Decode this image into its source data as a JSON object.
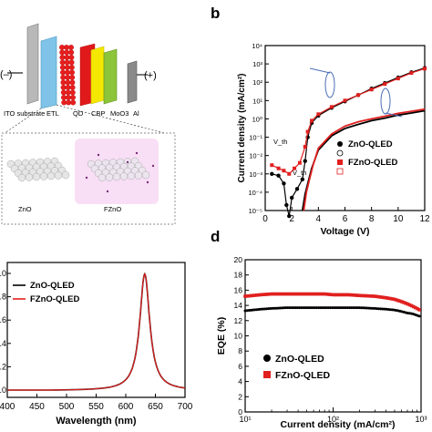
{
  "panel_a": {
    "labels": {
      "minus": "(–)",
      "plus": "(+)",
      "ito": "ITO substrate",
      "etl": "ETL",
      "qd": "QD",
      "cbp": "CBP",
      "moo3": "MoO3",
      "al": "Al",
      "zno": "ZnO",
      "fzno": "FZnO"
    },
    "colors": {
      "etl": "#7fc4e8",
      "qd": "#e81f1f",
      "cbp": "#f5e800",
      "moo3": "#8cc43a",
      "al": "#8a8a8a",
      "fzno_glow": "#f2c4ee"
    }
  },
  "panel_b": {
    "letter": "b"
  },
  "panel_c": {
    "letter": ""
  },
  "panel_d": {
    "letter": "d"
  },
  "chart_data": [
    {
      "id": "b",
      "type": "line",
      "title": "",
      "xlabel": "Voltage (V)",
      "ylabel": "Current density (mA/cm²)",
      "xlim": [
        0,
        12
      ],
      "ylim_log10": [
        -5,
        4
      ],
      "yscale": "log",
      "xticks": [
        "0",
        "2",
        "4",
        "6",
        "8",
        "10",
        "12"
      ],
      "yticks": [
        "10⁴",
        "10³",
        "10²",
        "10¹",
        "10⁰",
        "10⁻¹",
        "10⁻²",
        "10⁻³",
        "10⁻⁴",
        "10⁻⁵"
      ],
      "annotations": [
        "V_th",
        "V_th"
      ],
      "legend_position": "right",
      "series": [
        {
          "name": "ZnO-QLED",
          "kind": "current",
          "color": "#000000",
          "x": [
            0.5,
            1.0,
            1.4,
            1.6,
            1.8,
            2.0,
            2.4,
            2.8,
            3.0,
            3.2,
            3.5,
            4,
            5,
            6,
            7,
            8,
            9,
            10,
            11,
            12
          ],
          "y": [
            0.001,
            0.0008,
            0.0003,
            2e-05,
            5e-06,
            5e-05,
            0.00015,
            0.0005,
            0.005,
            0.1,
            0.6,
            1.5,
            4,
            9,
            20,
            45,
            90,
            180,
            350,
            600
          ]
        },
        {
          "name": "ZnO-QLED",
          "kind": "luminance",
          "color": "#000000",
          "x": [
            2.8,
            3.0,
            3.2,
            3.5,
            4,
            5,
            6,
            7,
            8,
            9,
            10,
            11,
            12
          ],
          "y": [
            1e-05,
            8e-05,
            0.0003,
            0.002,
            0.02,
            0.12,
            0.3,
            0.5,
            0.8,
            1.1,
            1.6,
            2.1,
            2.8
          ]
        },
        {
          "name": "FZnO-QLED",
          "kind": "current",
          "color": "#e0201f",
          "x": [
            0.5,
            1.0,
            1.4,
            1.8,
            2.2,
            2.6,
            3.0,
            3.2,
            3.5,
            4,
            5,
            6,
            7,
            8,
            9,
            10,
            11,
            12
          ],
          "y": [
            0.003,
            0.002,
            0.0015,
            0.001,
            0.002,
            0.004,
            0.03,
            0.2,
            0.8,
            1.8,
            4.5,
            10,
            20,
            40,
            80,
            160,
            320,
            550
          ]
        },
        {
          "name": "FZnO-QLED",
          "kind": "luminance",
          "color": "#e0201f",
          "x": [
            2.9,
            3.1,
            3.3,
            3.6,
            4,
            5,
            6,
            7,
            8,
            9,
            10,
            11,
            12
          ],
          "y": [
            1e-05,
            0.0001,
            0.0004,
            0.003,
            0.025,
            0.15,
            0.4,
            0.7,
            1.0,
            1.4,
            2.0,
            2.6,
            3.4
          ]
        }
      ]
    },
    {
      "id": "c",
      "type": "line",
      "title": "",
      "xlabel": "Wavelength (nm)",
      "ylabel": "",
      "xlim": [
        400,
        700
      ],
      "ylim": [
        0,
        1.0
      ],
      "xticks": [
        "400",
        "450",
        "500",
        "550",
        "600",
        "650",
        "700"
      ],
      "yticks": [
        "1.0",
        "0.8",
        "0.6",
        "0.4",
        "0.2",
        "0.0"
      ],
      "legend_position": "top-left",
      "series": [
        {
          "name": "ZnO-QLED",
          "color": "#000000",
          "peak_nm": 632,
          "fwhm_nm": 22
        },
        {
          "name": "FZnO-QLED",
          "color": "#e0201f",
          "peak_nm": 632,
          "fwhm_nm": 22
        }
      ]
    },
    {
      "id": "d",
      "type": "scatter",
      "title": "",
      "xlabel": "Current density (mA/cm²)",
      "ylabel": "EQE (%)",
      "xscale": "log",
      "xlim_log10": [
        1,
        3
      ],
      "ylim": [
        0,
        20
      ],
      "xticks": [
        "10¹",
        "10²",
        "10³"
      ],
      "yticks": [
        "20",
        "18",
        "16",
        "14",
        "12",
        "10",
        "8",
        "6",
        "4",
        "2",
        "0"
      ],
      "legend_position": "bottom-left",
      "series": [
        {
          "name": "ZnO-QLED",
          "color": "#000000",
          "marker": "circle",
          "x": [
            10,
            15,
            20,
            30,
            50,
            80,
            100,
            150,
            200,
            300,
            400,
            500,
            600,
            700,
            800,
            900,
            1000
          ],
          "y": [
            13.3,
            13.5,
            13.6,
            13.7,
            13.7,
            13.7,
            13.7,
            13.7,
            13.7,
            13.6,
            13.5,
            13.4,
            13.2,
            13.0,
            12.9,
            12.7,
            12.5
          ]
        },
        {
          "name": "FZnO-QLED",
          "color": "#e0201f",
          "marker": "square",
          "x": [
            10,
            15,
            20,
            30,
            50,
            80,
            100,
            150,
            200,
            300,
            400,
            500,
            600,
            700,
            800,
            900,
            1000
          ],
          "y": [
            15.2,
            15.4,
            15.5,
            15.5,
            15.5,
            15.5,
            15.4,
            15.4,
            15.3,
            15.2,
            15.0,
            14.8,
            14.5,
            14.2,
            13.9,
            13.6,
            13.3
          ]
        }
      ]
    }
  ]
}
